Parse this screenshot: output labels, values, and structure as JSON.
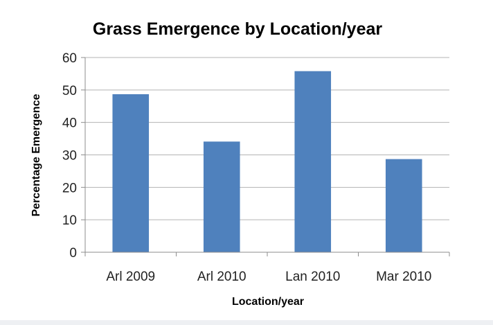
{
  "chart_data": {
    "type": "bar",
    "title": "Grass Emergence by Location/year",
    "xlabel": "Location/year",
    "ylabel": "Percentage Emergence",
    "categories": [
      "Arl 2009",
      "Arl 2010",
      "Lan 2010",
      "Mar 2010"
    ],
    "values": [
      48.7,
      34.1,
      55.8,
      28.7
    ],
    "ylim": [
      0,
      60
    ],
    "yticks": [
      0,
      10,
      20,
      30,
      40,
      50,
      60
    ],
    "grid": true,
    "legend": "none",
    "colors": {
      "bar": "#4f81bd",
      "grid": "#b3b3b3",
      "axis": "#8c8c8c"
    }
  }
}
